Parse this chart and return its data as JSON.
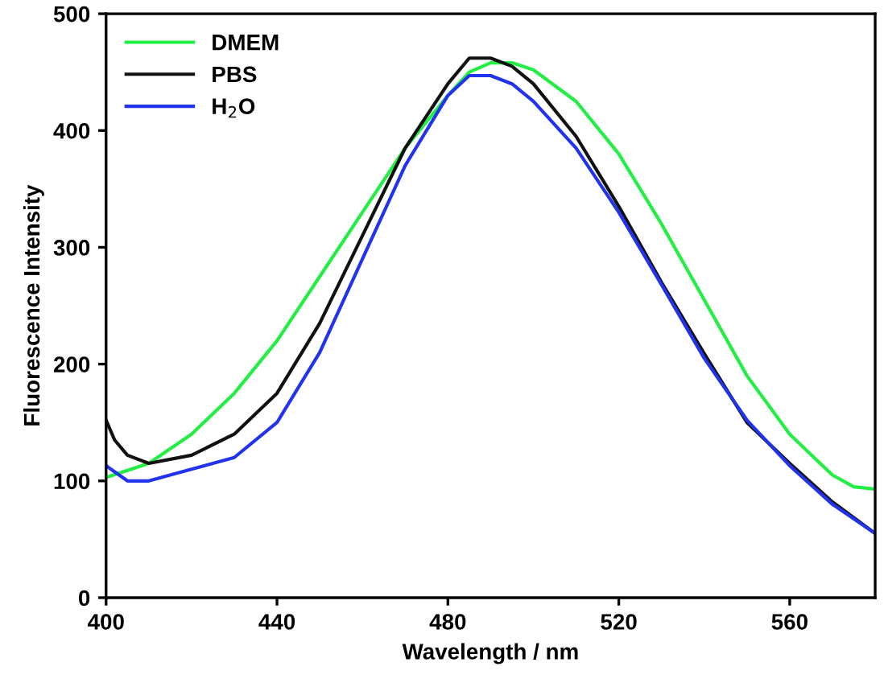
{
  "chart_data": {
    "type": "line",
    "xlabel": "Wavelength / nm",
    "ylabel": "Fluorescence Intensity",
    "xlim": [
      400,
      580
    ],
    "xticks": [
      400,
      440,
      480,
      520,
      560
    ],
    "ylim": [
      0,
      500
    ],
    "yticks": [
      0,
      100,
      200,
      300,
      400,
      500
    ],
    "legend": "top left",
    "grid": false,
    "series": [
      {
        "name": "DMEM",
        "color": "#22ee44",
        "x": [
          400,
          410,
          420,
          430,
          440,
          450,
          460,
          470,
          480,
          485,
          490,
          495,
          500,
          510,
          520,
          530,
          540,
          550,
          560,
          570,
          575,
          580
        ],
        "values": [
          103,
          115,
          140,
          175,
          220,
          275,
          330,
          385,
          430,
          450,
          458,
          458,
          452,
          425,
          380,
          320,
          255,
          190,
          140,
          105,
          95,
          93
        ]
      },
      {
        "name": "PBS",
        "color": "#111111",
        "x": [
          400,
          402,
          405,
          410,
          420,
          430,
          440,
          450,
          460,
          470,
          480,
          485,
          490,
          495,
          500,
          510,
          520,
          530,
          540,
          550,
          560,
          570,
          580
        ],
        "values": [
          152,
          135,
          122,
          115,
          122,
          140,
          175,
          235,
          310,
          385,
          440,
          462,
          462,
          455,
          440,
          395,
          335,
          270,
          209,
          150,
          115,
          82,
          55
        ]
      },
      {
        "name": "H$_{2}$O",
        "color": "#2233ee",
        "x": [
          400,
          405,
          410,
          420,
          430,
          440,
          450,
          460,
          470,
          480,
          485,
          490,
          495,
          500,
          510,
          520,
          530,
          540,
          550,
          560,
          570,
          580
        ],
        "values": [
          113,
          100,
          100,
          110,
          120,
          150,
          210,
          290,
          370,
          430,
          447,
          447,
          440,
          425,
          385,
          330,
          268,
          205,
          152,
          113,
          80,
          55
        ]
      }
    ]
  }
}
